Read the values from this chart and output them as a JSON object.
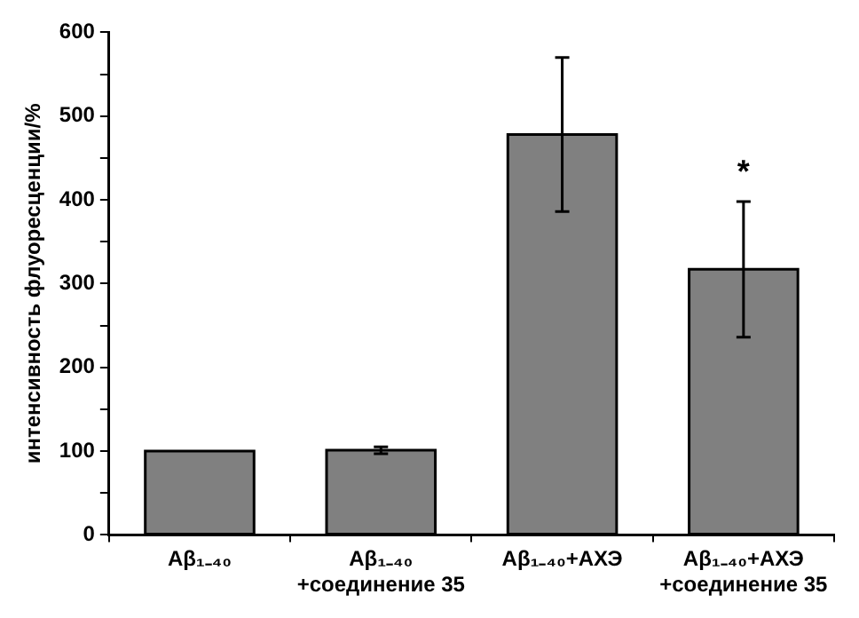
{
  "chart_data": {
    "type": "bar",
    "ylabel": "интенсивность флуоресценции/%",
    "categories": [
      "Aβ₁₋₄₀",
      "Aβ₁₋₄₀\n+соединение 35",
      "Aβ₁₋₄₀+АХЭ",
      "Aβ₁₋₄₀+АХЭ\n+соединение 35"
    ],
    "values": [
      100,
      101,
      478,
      317
    ],
    "errors": [
      null,
      4,
      92,
      81
    ],
    "color": "#808080",
    "ylim": [
      0,
      600
    ],
    "yticks": [
      0,
      {
        "value": 50,
        "label": null
      },
      100,
      {
        "value": 150,
        "label": null
      },
      200,
      {
        "value": 250,
        "label": null
      },
      300,
      {
        "value": 350,
        "label": null
      },
      400,
      {
        "value": 450,
        "label": null
      },
      500,
      {
        "value": 550,
        "label": null
      },
      600
    ],
    "annotations": [
      "*"
    ],
    "grid": false,
    "legend": false
  }
}
